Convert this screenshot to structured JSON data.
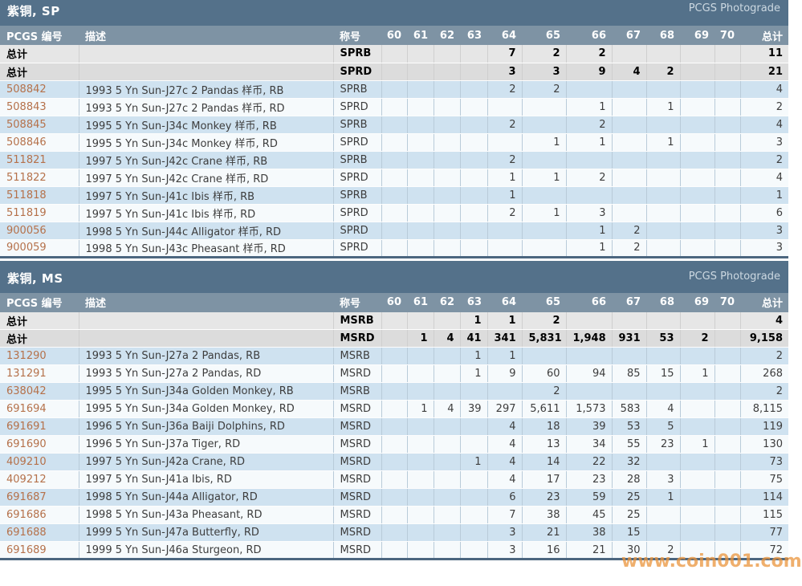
{
  "watermark": "www.coin001.com",
  "columns": {
    "id": "PCGS 编号",
    "desc": "描述",
    "designation": "称号",
    "grades": [
      "60",
      "61",
      "62",
      "63",
      "64",
      "65",
      "66",
      "67",
      "68",
      "69",
      "70"
    ],
    "total": "总计"
  },
  "colors": {
    "section_bar": "#54718a",
    "header_row": "#7e93a4",
    "row_blue": "#cfe2f0",
    "row_light": "#f6fafc",
    "total_row_gray": "#e6e6e6",
    "id_link": "#b5714a",
    "watermark_orange": "#e9943c"
  },
  "sections": [
    {
      "title": "紫铜, SP",
      "badge": "PCGS Photograde",
      "total_label": "总计",
      "totals": [
        {
          "designation": "SPRB",
          "grades": [
            "",
            "",
            "",
            "",
            "7",
            "2",
            "2",
            "",
            "",
            "",
            ""
          ],
          "total": "11"
        },
        {
          "designation": "SPRD",
          "grades": [
            "",
            "",
            "",
            "",
            "3",
            "3",
            "9",
            "4",
            "2",
            "",
            ""
          ],
          "total": "21"
        }
      ],
      "rows": [
        {
          "id": "508842",
          "desc": "1993 5 Yn Sun-J27c 2 Pandas 样币, RB",
          "designation": "SPRB",
          "grades": [
            "",
            "",
            "",
            "",
            "2",
            "2",
            "",
            "",
            "",
            "",
            ""
          ],
          "total": "4"
        },
        {
          "id": "508843",
          "desc": "1993 5 Yn Sun-J27c 2 Pandas 样币, RD",
          "designation": "SPRD",
          "grades": [
            "",
            "",
            "",
            "",
            "",
            "",
            "1",
            "",
            "1",
            "",
            ""
          ],
          "total": "2"
        },
        {
          "id": "508845",
          "desc": "1995 5 Yn Sun-J34c Monkey 样币, RB",
          "designation": "SPRB",
          "grades": [
            "",
            "",
            "",
            "",
            "2",
            "",
            "2",
            "",
            "",
            "",
            ""
          ],
          "total": "4"
        },
        {
          "id": "508846",
          "desc": "1995 5 Yn Sun-J34c Monkey 样币, RD",
          "designation": "SPRD",
          "grades": [
            "",
            "",
            "",
            "",
            "",
            "1",
            "1",
            "",
            "1",
            "",
            ""
          ],
          "total": "3"
        },
        {
          "id": "511821",
          "desc": "1997 5 Yn Sun-J42c Crane 样币, RB",
          "designation": "SPRB",
          "grades": [
            "",
            "",
            "",
            "",
            "2",
            "",
            "",
            "",
            "",
            "",
            ""
          ],
          "total": "2"
        },
        {
          "id": "511822",
          "desc": "1997 5 Yn Sun-J42c Crane 样币, RD",
          "designation": "SPRD",
          "grades": [
            "",
            "",
            "",
            "",
            "1",
            "1",
            "2",
            "",
            "",
            "",
            ""
          ],
          "total": "4"
        },
        {
          "id": "511818",
          "desc": "1997 5 Yn Sun-J41c Ibis 样币, RB",
          "designation": "SPRB",
          "grades": [
            "",
            "",
            "",
            "",
            "1",
            "",
            "",
            "",
            "",
            "",
            ""
          ],
          "total": "1"
        },
        {
          "id": "511819",
          "desc": "1997 5 Yn Sun-J41c Ibis 样币, RD",
          "designation": "SPRD",
          "grades": [
            "",
            "",
            "",
            "",
            "2",
            "1",
            "3",
            "",
            "",
            "",
            ""
          ],
          "total": "6"
        },
        {
          "id": "900056",
          "desc": "1998 5 Yn Sun-J44c Alligator 样币, RD",
          "designation": "SPRD",
          "grades": [
            "",
            "",
            "",
            "",
            "",
            "",
            "1",
            "2",
            "",
            "",
            ""
          ],
          "total": "3"
        },
        {
          "id": "900059",
          "desc": "1998 5 Yn Sun-J43c Pheasant 样币, RD",
          "designation": "SPRD",
          "grades": [
            "",
            "",
            "",
            "",
            "",
            "",
            "1",
            "2",
            "",
            "",
            ""
          ],
          "total": "3"
        }
      ]
    },
    {
      "title": "紫铜, MS",
      "badge": "PCGS Photograde",
      "total_label": "总计",
      "totals": [
        {
          "designation": "MSRB",
          "grades": [
            "",
            "",
            "",
            "1",
            "1",
            "2",
            "",
            "",
            "",
            "",
            ""
          ],
          "total": "4"
        },
        {
          "designation": "MSRD",
          "grades": [
            "",
            "1",
            "4",
            "41",
            "341",
            "5,831",
            "1,948",
            "931",
            "53",
            "2",
            ""
          ],
          "total": "9,158"
        }
      ],
      "rows": [
        {
          "id": "131290",
          "desc": "1993 5 Yn Sun-J27a 2 Pandas, RB",
          "designation": "MSRB",
          "grades": [
            "",
            "",
            "",
            "1",
            "1",
            "",
            "",
            "",
            "",
            "",
            ""
          ],
          "total": "2"
        },
        {
          "id": "131291",
          "desc": "1993 5 Yn Sun-J27a 2 Pandas, RD",
          "designation": "MSRD",
          "grades": [
            "",
            "",
            "",
            "1",
            "9",
            "60",
            "94",
            "85",
            "15",
            "1",
            ""
          ],
          "total": "268"
        },
        {
          "id": "638042",
          "desc": "1995 5 Yn Sun-J34a Golden Monkey, RB",
          "designation": "MSRB",
          "grades": [
            "",
            "",
            "",
            "",
            "",
            "2",
            "",
            "",
            "",
            "",
            ""
          ],
          "total": "2"
        },
        {
          "id": "691694",
          "desc": "1995 5 Yn Sun-J34a Golden Monkey, RD",
          "designation": "MSRD",
          "grades": [
            "",
            "1",
            "4",
            "39",
            "297",
            "5,611",
            "1,573",
            "583",
            "4",
            "",
            ""
          ],
          "total": "8,115"
        },
        {
          "id": "691691",
          "desc": "1996 5 Yn Sun-J36a Baiji Dolphins, RD",
          "designation": "MSRD",
          "grades": [
            "",
            "",
            "",
            "",
            "4",
            "18",
            "39",
            "53",
            "5",
            "",
            ""
          ],
          "total": "119"
        },
        {
          "id": "691690",
          "desc": "1996 5 Yn Sun-J37a Tiger, RD",
          "designation": "MSRD",
          "grades": [
            "",
            "",
            "",
            "",
            "4",
            "13",
            "34",
            "55",
            "23",
            "1",
            ""
          ],
          "total": "130"
        },
        {
          "id": "409210",
          "desc": "1997 5 Yn Sun-J42a Crane, RD",
          "designation": "MSRD",
          "grades": [
            "",
            "",
            "",
            "1",
            "4",
            "14",
            "22",
            "32",
            "",
            "",
            ""
          ],
          "total": "73"
        },
        {
          "id": "409212",
          "desc": "1997 5 Yn Sun-J41a Ibis, RD",
          "designation": "MSRD",
          "grades": [
            "",
            "",
            "",
            "",
            "4",
            "17",
            "23",
            "28",
            "3",
            "",
            ""
          ],
          "total": "75"
        },
        {
          "id": "691687",
          "desc": "1998 5 Yn Sun-J44a Alligator, RD",
          "designation": "MSRD",
          "grades": [
            "",
            "",
            "",
            "",
            "6",
            "23",
            "59",
            "25",
            "1",
            "",
            ""
          ],
          "total": "114"
        },
        {
          "id": "691686",
          "desc": "1998 5 Yn Sun-J43a Pheasant, RD",
          "designation": "MSRD",
          "grades": [
            "",
            "",
            "",
            "",
            "7",
            "38",
            "45",
            "25",
            "",
            "",
            ""
          ],
          "total": "115"
        },
        {
          "id": "691688",
          "desc": "1999 5 Yn Sun-J47a Butterfly, RD",
          "designation": "MSRD",
          "grades": [
            "",
            "",
            "",
            "",
            "3",
            "21",
            "38",
            "15",
            "",
            "",
            ""
          ],
          "total": "77"
        },
        {
          "id": "691689",
          "desc": "1999 5 Yn Sun-J46a Sturgeon, RD",
          "designation": "MSRD",
          "grades": [
            "",
            "",
            "",
            "",
            "3",
            "16",
            "21",
            "30",
            "2",
            "",
            ""
          ],
          "total": "72"
        }
      ]
    }
  ]
}
